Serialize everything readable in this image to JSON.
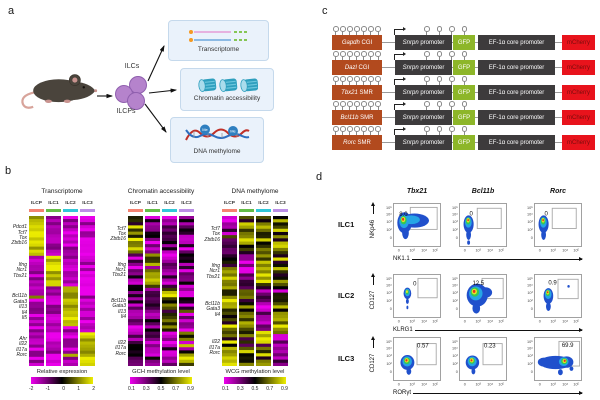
{
  "panels": {
    "a": "a",
    "b": "b",
    "c": "c",
    "d": "d"
  },
  "panel_a": {
    "ilcs": "ILCs",
    "ilcps": "ILCPs",
    "boxes": [
      {
        "label": "Transcriptome"
      },
      {
        "label": "Chromatin accessibility"
      },
      {
        "label": "DNA methylome"
      }
    ],
    "me": "Me"
  },
  "panel_b": {
    "column_colors": [
      "#f48271",
      "#63bd46",
      "#31c7d8",
      "#bb8fe6"
    ],
    "heatmaps": [
      {
        "title": "Transcriptome",
        "columns": [
          "ILCP",
          "ILC1",
          "ILC2",
          "ILC3"
        ],
        "gene_groups": [
          [
            "Pdcd1",
            "Tcf7",
            "Tox",
            "Zbtb16"
          ],
          [
            "Ifng",
            "Ncr1",
            "Tbx21"
          ],
          [
            "Bcl11b",
            "Gata3",
            "Il13",
            "Il4",
            "Il5"
          ],
          [
            "Ahr",
            "Il22",
            "Il17a",
            "Rorc"
          ]
        ],
        "group_rows": [
          13,
          10,
          14,
          12
        ],
        "mode": "expr",
        "legend": {
          "label": "Relative expression",
          "ticks": [
            "-2",
            "-1",
            "0",
            "1",
            "2"
          ]
        }
      },
      {
        "title": "Chromatin accessibility",
        "columns": [
          "ILCP",
          "ILC1",
          "ILC2",
          "ILC3"
        ],
        "gene_groups": [
          [
            "Tcf7",
            "Tox",
            "Zbtb16"
          ],
          [
            "Ifng",
            "Ncr1",
            "Tbx21"
          ],
          [
            "Bcl11b",
            "Gata3",
            "Il13",
            "Il4"
          ],
          [
            "Il22",
            "Il17a",
            "Rorc"
          ]
        ],
        "group_rows": [
          12,
          11,
          14,
          11
        ],
        "mode": "gch",
        "legend": {
          "label": "GCH methylation level",
          "ticks": [
            "0.1",
            "0.3",
            "0.5",
            "0.7",
            "0.9"
          ]
        }
      },
      {
        "title": "DNA methylome",
        "columns": [
          "ILCP",
          "ILC1",
          "ILC2",
          "ILC3"
        ],
        "gene_groups": [
          [
            "Tcf7",
            "Tox",
            "Zbtb16"
          ],
          [
            "Ifng",
            "Ncr1",
            "Tbx21"
          ],
          [
            "Bcl11b",
            "Gata3",
            "Il4"
          ],
          [
            "Il22",
            "Il17a",
            "Rorc"
          ]
        ],
        "group_rows": [
          12,
          11,
          13,
          11
        ],
        "mode": "wcg",
        "legend": {
          "label": "WCG methylation level",
          "ticks": [
            "0.1",
            "0.3",
            "0.5",
            "0.7",
            "0.9"
          ]
        }
      }
    ]
  },
  "panel_c": {
    "rows": [
      {
        "gene": "Gapdh",
        "region": " CGI"
      },
      {
        "gene": "Dazl",
        "region": " CGI"
      },
      {
        "gene": "Tbx21",
        "region": " SMR"
      },
      {
        "gene": "Bcl11b",
        "region": " SMR"
      },
      {
        "gene": "Rorc",
        "region": " SMR"
      }
    ],
    "snrpn_gene": "Snrpn",
    "promoter": " promoter",
    "gfp": "GFP",
    "ef1a": "EF-1α core promoter",
    "mcherry": "mCherry",
    "colors": {
      "insert": "#b24a1e",
      "dark": "#3d3b3c",
      "gfp": "#8db629",
      "mcherry": "#e8131c",
      "mcherry_text": "#7a0d0d"
    }
  },
  "panel_d": {
    "col_headers": [
      "Tbx21",
      "Bcl11b",
      "Rorc"
    ],
    "x_ticks": [
      "0",
      "10³",
      "10⁴",
      "10⁵"
    ],
    "y_ticks": [
      "10⁵",
      "10⁴",
      "10³",
      "10²",
      "0"
    ],
    "rows": [
      {
        "label": "ILC1",
        "y_axis": "NKp46",
        "x_axis": "NK1.1",
        "values": [
          "8.0",
          "0",
          "0"
        ]
      },
      {
        "label": "ILC2",
        "y_axis": "CD127",
        "x_axis": "KLRG1",
        "values": [
          "0",
          "12.5",
          "0.9"
        ]
      },
      {
        "label": "ILC3",
        "y_axis": "CD127",
        "x_axis": "RORγt",
        "values": [
          "0.57",
          "0.23",
          "69.9"
        ]
      }
    ],
    "plots": [
      {
        "gate": [
          0.36,
          0.1,
          0.56,
          0.5
        ],
        "value_pos": [
          0.13,
          0.18
        ],
        "layers": [
          [
            0.45,
            0.4,
            0.3,
            0.16,
            0
          ],
          [
            0.24,
            0.45,
            0.15,
            0.24,
            0
          ],
          [
            0.26,
            0.68,
            0.07,
            0.14,
            0
          ],
          [
            0.38,
            0.38,
            0.18,
            0.1,
            1
          ],
          [
            0.23,
            0.42,
            0.1,
            0.15,
            1
          ],
          [
            0.22,
            0.39,
            0.065,
            0.095,
            2
          ],
          [
            0.215,
            0.375,
            0.042,
            0.06,
            3
          ],
          [
            0.21,
            0.37,
            0.022,
            0.032,
            4
          ]
        ]
      },
      {
        "gate": [
          0.38,
          0.12,
          0.5,
          0.46
        ],
        "value_pos": [
          0.22,
          0.17
        ],
        "layers": [
          [
            0.2,
            0.48,
            0.105,
            0.2,
            0
          ],
          [
            0.2,
            0.72,
            0.05,
            0.12,
            0
          ],
          [
            0.2,
            0.9,
            0.03,
            0.05,
            0
          ],
          [
            0.195,
            0.44,
            0.07,
            0.12,
            1
          ],
          [
            0.19,
            0.41,
            0.048,
            0.08,
            2
          ],
          [
            0.19,
            0.395,
            0.03,
            0.05,
            3
          ],
          [
            0.19,
            0.39,
            0.016,
            0.026,
            4
          ]
        ]
      },
      {
        "gate": [
          0.38,
          0.12,
          0.5,
          0.46
        ],
        "value_pos": [
          0.22,
          0.17
        ],
        "layers": [
          [
            0.2,
            0.48,
            0.105,
            0.2,
            0
          ],
          [
            0.2,
            0.72,
            0.05,
            0.12,
            0
          ],
          [
            0.195,
            0.44,
            0.07,
            0.12,
            1
          ],
          [
            0.19,
            0.41,
            0.048,
            0.08,
            2
          ],
          [
            0.19,
            0.395,
            0.03,
            0.05,
            3
          ],
          [
            0.19,
            0.39,
            0.016,
            0.026,
            4
          ]
        ]
      },
      {
        "gate": [
          0.52,
          0.1,
          0.4,
          0.44
        ],
        "value_pos": [
          0.42,
          0.15
        ],
        "layers": [
          [
            0.3,
            0.44,
            0.08,
            0.13,
            0
          ],
          [
            0.3,
            0.62,
            0.03,
            0.06,
            0
          ],
          [
            0.3,
            0.76,
            0.02,
            0.04,
            0
          ],
          [
            0.3,
            0.42,
            0.055,
            0.085,
            1
          ],
          [
            0.295,
            0.41,
            0.035,
            0.055,
            2
          ],
          [
            0.29,
            0.4,
            0.02,
            0.032,
            3
          ]
        ]
      },
      {
        "gate": [
          0.48,
          0.1,
          0.44,
          0.46
        ],
        "value_pos": [
          0.28,
          0.14
        ],
        "layers": [
          [
            0.38,
            0.48,
            0.22,
            0.26,
            0
          ],
          [
            0.36,
            0.78,
            0.08,
            0.12,
            0
          ],
          [
            0.55,
            0.42,
            0.14,
            0.12,
            0
          ],
          [
            0.35,
            0.44,
            0.14,
            0.16,
            1
          ],
          [
            0.33,
            0.41,
            0.09,
            0.105,
            2
          ],
          [
            0.32,
            0.4,
            0.055,
            0.065,
            3
          ],
          [
            0.315,
            0.395,
            0.028,
            0.035,
            4
          ]
        ]
      },
      {
        "gate": [
          0.5,
          0.12,
          0.42,
          0.44
        ],
        "value_pos": [
          0.3,
          0.13
        ],
        "layers": [
          [
            0.3,
            0.5,
            0.1,
            0.18,
            0
          ],
          [
            0.3,
            0.74,
            0.05,
            0.1,
            0
          ],
          [
            0.72,
            0.28,
            0.025,
            0.03,
            0
          ],
          [
            0.295,
            0.46,
            0.07,
            0.11,
            1
          ],
          [
            0.29,
            0.43,
            0.045,
            0.07,
            2
          ],
          [
            0.285,
            0.42,
            0.028,
            0.045,
            3
          ],
          [
            0.285,
            0.415,
            0.015,
            0.022,
            4
          ]
        ]
      },
      {
        "gate": [
          0.5,
          0.15,
          0.4,
          0.48
        ],
        "value_pos": [
          0.5,
          0.13
        ],
        "layers": [
          [
            0.3,
            0.58,
            0.145,
            0.17,
            0
          ],
          [
            0.33,
            0.78,
            0.05,
            0.08,
            0
          ],
          [
            0.295,
            0.555,
            0.1,
            0.115,
            1
          ],
          [
            0.29,
            0.54,
            0.065,
            0.075,
            2
          ],
          [
            0.285,
            0.53,
            0.042,
            0.05,
            3
          ],
          [
            0.28,
            0.53,
            0.022,
            0.026,
            4
          ]
        ]
      },
      {
        "gate": [
          0.5,
          0.15,
          0.4,
          0.48
        ],
        "value_pos": [
          0.52,
          0.13
        ],
        "layers": [
          [
            0.28,
            0.58,
            0.14,
            0.16,
            0
          ],
          [
            0.3,
            0.78,
            0.04,
            0.07,
            0
          ],
          [
            0.275,
            0.555,
            0.095,
            0.11,
            1
          ],
          [
            0.27,
            0.54,
            0.06,
            0.07,
            2
          ],
          [
            0.265,
            0.53,
            0.04,
            0.047,
            3
          ],
          [
            0.26,
            0.53,
            0.02,
            0.025,
            4
          ]
        ]
      },
      {
        "gate": [
          0.52,
          0.1,
          0.43,
          0.56
        ],
        "value_pos": [
          0.58,
          0.11
        ],
        "layers": [
          [
            0.45,
            0.58,
            0.34,
            0.15,
            0
          ],
          [
            0.2,
            0.57,
            0.12,
            0.1,
            0
          ],
          [
            0.68,
            0.57,
            0.14,
            0.13,
            0
          ],
          [
            0.55,
            0.8,
            0.05,
            0.07,
            0
          ],
          [
            0.78,
            0.72,
            0.04,
            0.05,
            0
          ],
          [
            0.62,
            0.56,
            0.1,
            0.1,
            1
          ],
          [
            0.63,
            0.55,
            0.065,
            0.07,
            2
          ],
          [
            0.635,
            0.545,
            0.04,
            0.045,
            3
          ],
          [
            0.64,
            0.54,
            0.022,
            0.026,
            4
          ]
        ]
      }
    ]
  }
}
